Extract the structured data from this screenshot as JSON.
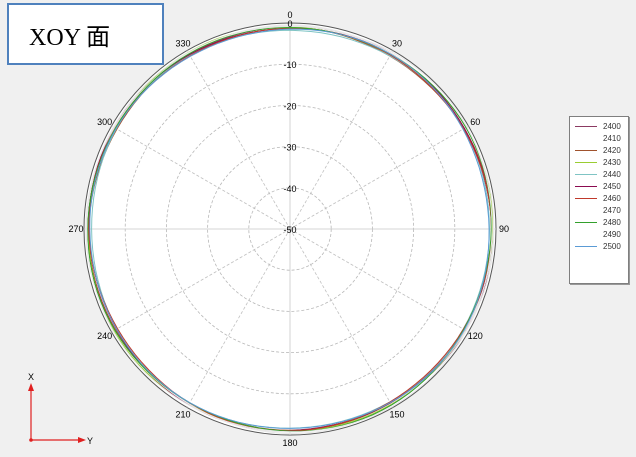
{
  "title": "XOY 面",
  "chart_data": {
    "type": "polar-line",
    "angle_labels": [
      "0",
      "30",
      "60",
      "90",
      "120",
      "150",
      "180",
      "210",
      "240",
      "270",
      "300",
      "330"
    ],
    "radial_labels": [
      "0",
      "-10",
      "-20",
      "-30",
      "-40",
      "-50"
    ],
    "rlim": [
      -50,
      0
    ],
    "angle_zero": "top",
    "angle_direction": "clockwise",
    "grid": true,
    "legend_position": "right",
    "series": [
      {
        "name": "2400",
        "color": "#8b3a62",
        "value": -1.0
      },
      {
        "name": "2410",
        "color": "#ffffff",
        "value": -0.8
      },
      {
        "name": "2420",
        "color": "#a0522d",
        "value": -1.2
      },
      {
        "name": "2430",
        "color": "#9acd32",
        "value": -0.9
      },
      {
        "name": "2440",
        "color": "#7fc4c4",
        "value": -1.5
      },
      {
        "name": "2450",
        "color": "#8b0a50",
        "value": -1.1
      },
      {
        "name": "2460",
        "color": "#c0392b",
        "value": -1.3
      },
      {
        "name": "2470",
        "color": "#ffffff",
        "value": -0.7
      },
      {
        "name": "2480",
        "color": "#33a02c",
        "value": -1.0
      },
      {
        "name": "2490",
        "color": "#ffffff",
        "value": -0.6
      },
      {
        "name": "2500",
        "color": "#5b9bd5",
        "value": -1.4
      }
    ]
  },
  "axes_indicator": {
    "x_label": "X",
    "y_label": "Y",
    "color": "#e02020"
  }
}
